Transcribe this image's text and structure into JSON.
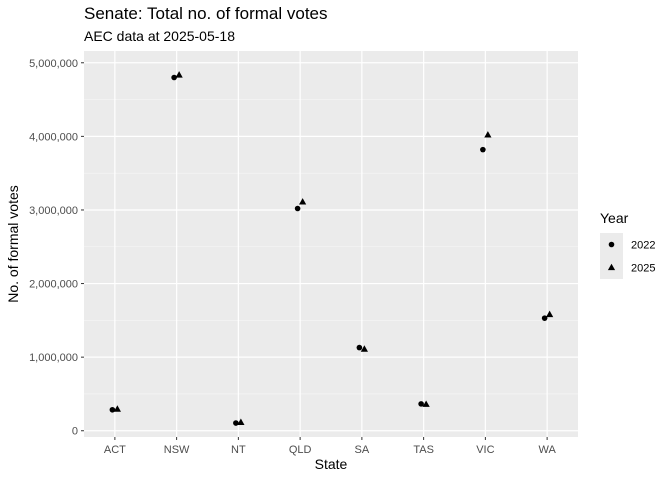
{
  "chart_data": {
    "type": "scatter",
    "title": "Senate: Total no. of formal votes",
    "subtitle": "AEC data at 2025-05-18",
    "xlabel": "State",
    "ylabel": "No. of formal votes",
    "categories": [
      "ACT",
      "NSW",
      "NT",
      "QLD",
      "SA",
      "TAS",
      "VIC",
      "WA"
    ],
    "ylim": [
      -85000,
      5160000
    ],
    "yticks": [
      0,
      1000000,
      2000000,
      3000000,
      4000000,
      5000000
    ],
    "ytick_labels": [
      "0",
      "1,000,000",
      "2,000,000",
      "3,000,000",
      "4,000,000",
      "5,000,000"
    ],
    "grid": true,
    "legend": {
      "title": "Year",
      "position": "right"
    },
    "series": [
      {
        "name": "2022",
        "shape": "circle",
        "values": [
          285000,
          4800000,
          105000,
          3020000,
          1130000,
          365000,
          3820000,
          1530000
        ]
      },
      {
        "name": "2025",
        "shape": "triangle",
        "values": [
          295000,
          4835000,
          115000,
          3110000,
          1110000,
          360000,
          4020000,
          1580000
        ]
      }
    ]
  }
}
